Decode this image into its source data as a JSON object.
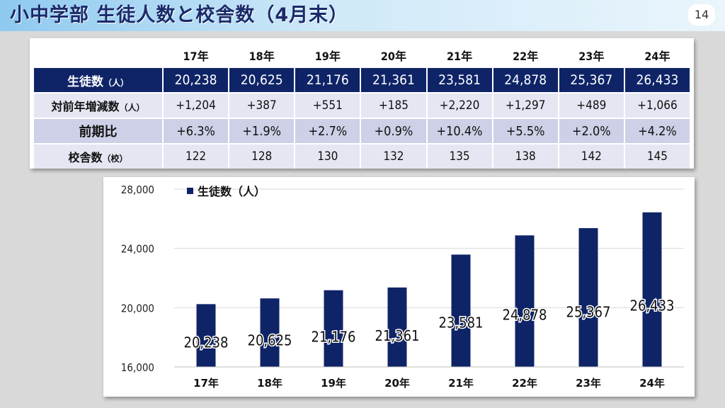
{
  "page": {
    "title": "小中学部 生徒人数と校舎数（4月末）",
    "page_number": "14",
    "colors": {
      "navy": "#0f2467",
      "title_text": "#1a2a6a",
      "row_light": "#e4e6f2",
      "row_mid": "#cdd0e6"
    }
  },
  "table": {
    "columns": [
      "17年",
      "18年",
      "19年",
      "20年",
      "21年",
      "22年",
      "23年",
      "24年"
    ],
    "rows": [
      {
        "label": "生徒数",
        "unit": "（人）",
        "cells": [
          "20,238",
          "20,625",
          "21,176",
          "21,361",
          "23,581",
          "24,878",
          "25,367",
          "26,433"
        ]
      },
      {
        "label": "対前年増減数",
        "unit": "（人）",
        "cells": [
          "+1,204",
          "+387",
          "+551",
          "+185",
          "+2,220",
          "+1,297",
          "+489",
          "+1,066"
        ]
      },
      {
        "label": "前期比",
        "unit": "",
        "cells": [
          "+6.3%",
          "+1.9%",
          "+2.7%",
          "+0.9%",
          "+10.4%",
          "+5.5%",
          "+2.0%",
          "+4.2%"
        ]
      },
      {
        "label": "校舎数",
        "unit": "（校）",
        "cells": [
          "122",
          "128",
          "130",
          "132",
          "135",
          "138",
          "142",
          "145"
        ]
      }
    ]
  },
  "chart_data": {
    "type": "bar",
    "categories": [
      "17年",
      "18年",
      "19年",
      "20年",
      "21年",
      "22年",
      "23年",
      "24年"
    ],
    "series": [
      {
        "name": "生徒数（人）",
        "values": [
          20238,
          20625,
          21176,
          21361,
          23581,
          24878,
          25367,
          26433
        ],
        "color": "#0f2467"
      }
    ],
    "data_labels": [
      "20,238",
      "20,625",
      "21,176",
      "21,361",
      "23,581",
      "24,878",
      "25,367",
      "26,433"
    ],
    "y_ticks": [
      "16,000",
      "20,000",
      "24,000",
      "28,000"
    ],
    "ylim": [
      16000,
      28000
    ],
    "grid": true,
    "legend_position": "top-left"
  }
}
